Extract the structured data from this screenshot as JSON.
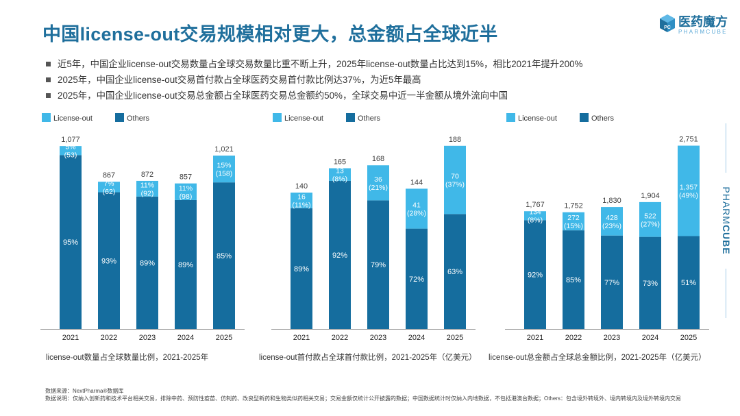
{
  "header": {
    "title": "中国license-out交易规模相对更大，总金额占全球近半",
    "brand_cn": "医药魔方",
    "brand_en": "PHARMCUBE",
    "side_brand_part1": "PHARM",
    "side_brand_part2": "CUBE"
  },
  "bullets": [
    "近5年，中国企业license-out交易数量占全球交易数量比重不断上升，2025年license-out数量占比达到15%，相比2021年提升200%",
    "2025年，中国企业license-out交易首付款占全球医药交易首付款比例达37%，为近5年最高",
    "2025年，中国企业license-out交易总金额占全球医药交易总金额约50%，全球交易中近一半金额从境外流向中国"
  ],
  "colors": {
    "license_out": "#40b8e8",
    "others": "#156d9e",
    "title": "#1f6f9c"
  },
  "chart_data": [
    {
      "type": "bar",
      "stacked": true,
      "caption": "license-out数量占全球数量比例，2021-2025年",
      "legend": [
        "License-out",
        "Others"
      ],
      "categories": [
        "2021",
        "2022",
        "2023",
        "2024",
        "2025"
      ],
      "totals": [
        1077,
        867,
        872,
        857,
        1021
      ],
      "total_labels": [
        "1,077",
        "867",
        "872",
        "857",
        "1,021"
      ],
      "series": [
        {
          "name": "License-out",
          "values": [
            53,
            62,
            92,
            98,
            158
          ],
          "labels": [
            "5%\n(53)",
            "7%\n(62)",
            "11%\n(92)",
            "11%\n(98)",
            "15%\n(158)"
          ]
        },
        {
          "name": "Others",
          "values": [
            1024,
            805,
            780,
            759,
            863
          ],
          "labels": [
            "95%",
            "93%",
            "89%",
            "89%",
            "85%"
          ]
        }
      ],
      "ylim": [
        0,
        1130
      ]
    },
    {
      "type": "bar",
      "stacked": true,
      "caption": "license-out首付款占全球首付款比例，2021-2025年（亿美元）",
      "legend": [
        "License-out",
        "Others"
      ],
      "categories": [
        "2021",
        "2022",
        "2023",
        "2024",
        "2025"
      ],
      "totals": [
        140,
        165,
        168,
        144,
        188
      ],
      "total_labels": [
        "140",
        "165",
        "168",
        "144",
        "188"
      ],
      "series": [
        {
          "name": "License-out",
          "values": [
            16,
            13,
            36,
            41,
            70
          ],
          "labels": [
            "16\n(11%)",
            "13\n(8%)",
            "36\n(21%)",
            "41\n(28%)",
            "70\n(37%)"
          ]
        },
        {
          "name": "Others",
          "values": [
            124,
            152,
            132,
            103,
            118
          ],
          "labels": [
            "89%",
            "92%",
            "79%",
            "72%",
            "63%"
          ]
        }
      ],
      "ylim": [
        0,
        197
      ]
    },
    {
      "type": "bar",
      "stacked": true,
      "caption": "license-out总金额占全球总金额比例，2021-2025年（亿美元）",
      "legend": [
        "License-out",
        "Others"
      ],
      "categories": [
        "2021",
        "2022",
        "2023",
        "2024",
        "2025"
      ],
      "totals": [
        1767,
        1752,
        1830,
        1904,
        2751
      ],
      "total_labels": [
        "1,767",
        "1,752",
        "1,830",
        "1,904",
        "2,751"
      ],
      "series": [
        {
          "name": "License-out",
          "values": [
            134,
            272,
            428,
            522,
            1357
          ],
          "labels": [
            "134\n(8%)",
            "272\n(15%)",
            "428\n(23%)",
            "522\n(27%)",
            "1,357\n(49%)"
          ]
        },
        {
          "name": "Others",
          "values": [
            1633,
            1480,
            1402,
            1382,
            1394
          ],
          "labels": [
            "92%",
            "85%",
            "77%",
            "73%",
            "51%"
          ]
        }
      ],
      "ylim": [
        0,
        2880
      ]
    }
  ],
  "footnote": {
    "source": "数据来源：NextPharma®数据库",
    "notes": "数据说明：仅纳入创新药和技术平台相关交易，排除中药、预防性疫苗、仿制药、改良型新药和生物类似药相关交易；交易金额仅统计公开披露的数据；中国数据统计时仅纳入内地数据，不包括港澳台数据；Others：包含境外转境外、境内转境内及境外转境内交易"
  }
}
